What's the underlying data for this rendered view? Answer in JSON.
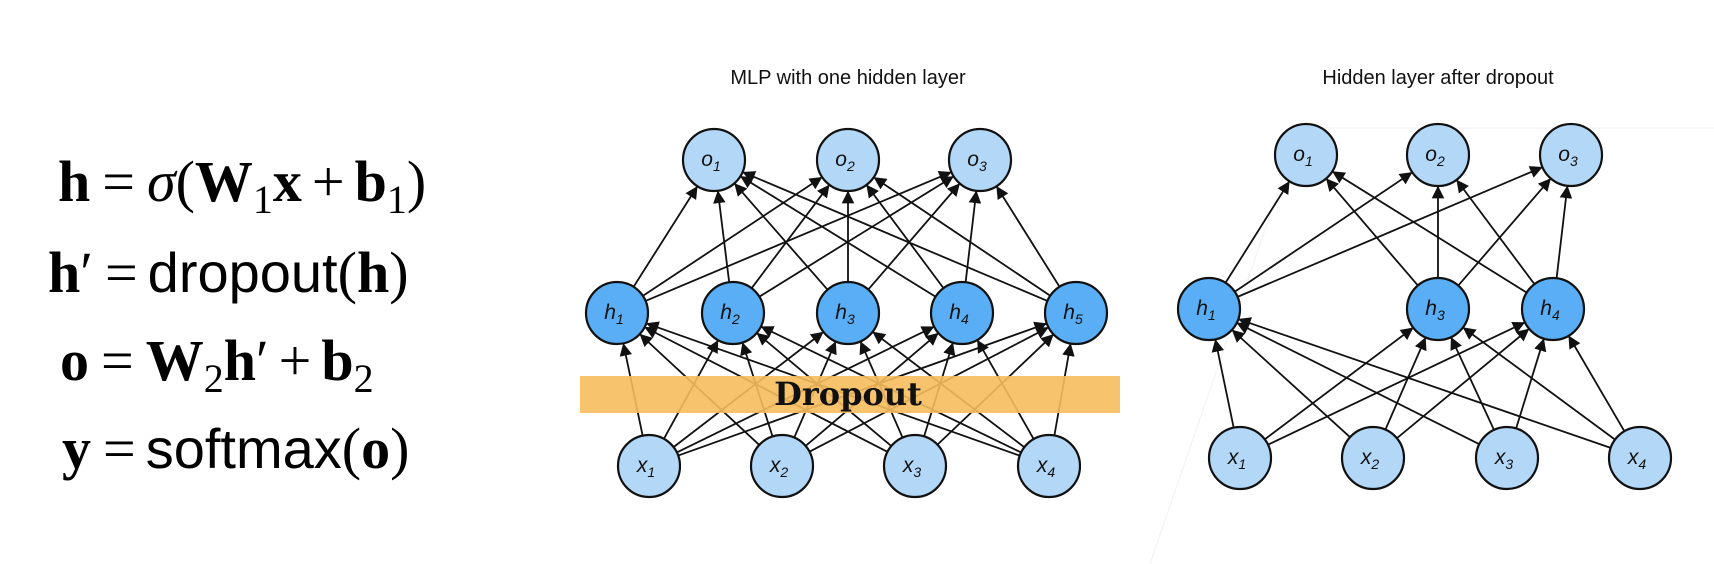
{
  "equations": {
    "eq1": {
      "lhs": "h",
      "eq": "=",
      "sigma": "σ",
      "open": "(",
      "W": "W",
      "W_sub": "1",
      "x": "x",
      "plus": "+",
      "b": "b",
      "b_sub": "1",
      "close": ")"
    },
    "eq2": {
      "lhs": "h",
      "prime": "′",
      "eq": "=",
      "func": "dropout",
      "open": "(",
      "arg": "h",
      "close": ")"
    },
    "eq3": {
      "lhs": "o",
      "eq": "=",
      "W": "W",
      "W_sub": "2",
      "h": "h",
      "prime": "′",
      "plus": "+",
      "b": "b",
      "b_sub": "2"
    },
    "eq4": {
      "lhs": "y",
      "eq": "=",
      "func": "softmax",
      "open": "(",
      "arg": "o",
      "close": ")"
    }
  },
  "left_panel": {
    "title": "MLP with one hidden layer",
    "dropout_label": "Dropout",
    "hidden_units": [
      "1",
      "2",
      "3",
      "4",
      "5"
    ]
  },
  "right_panel": {
    "title": "Hidden layer after dropout",
    "hidden_units": [
      "1",
      "3",
      "4"
    ]
  },
  "node_letters": {
    "input": "x",
    "hidden": "h",
    "output": "o"
  },
  "input_units": [
    "1",
    "2",
    "3",
    "4"
  ],
  "output_units": [
    "1",
    "2",
    "3"
  ],
  "colors": {
    "input_fill": "#b3d7f7",
    "output_fill": "#b3d7f7",
    "hidden_fill": "#5aaef5",
    "node_stroke": "#111111",
    "edge": "#111111",
    "dropout_band": "#f6bd5c"
  }
}
